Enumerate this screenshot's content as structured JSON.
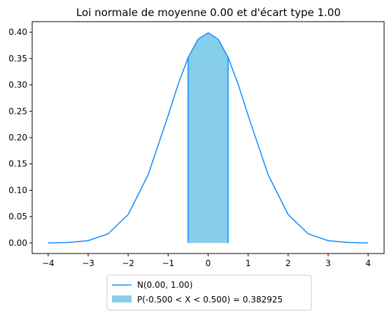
{
  "chart_data": {
    "type": "area",
    "title": "Loi normale de moyenne 0.00 et d'écart type 1.00",
    "xlabel": "",
    "ylabel": "",
    "xlim": [
      -4.4,
      4.4
    ],
    "ylim": [
      -0.02,
      0.42
    ],
    "x_ticks": [
      -4,
      -3,
      -2,
      -1,
      0,
      1,
      2,
      3,
      4
    ],
    "x_tick_labels": [
      "−4",
      "−3",
      "−2",
      "−1",
      "0",
      "1",
      "2",
      "3",
      "4"
    ],
    "y_ticks": [
      0.0,
      0.05,
      0.1,
      0.15,
      0.2,
      0.25,
      0.3,
      0.35,
      0.4
    ],
    "y_tick_labels": [
      "0.00",
      "0.05",
      "0.10",
      "0.15",
      "0.20",
      "0.25",
      "0.30",
      "0.35",
      "0.40"
    ],
    "grid": false,
    "legend_position": "bottom-center",
    "series": [
      {
        "name": "N(0.00, 1.00)",
        "kind": "line",
        "color": "#1e90ff",
        "x": [
          -4,
          -3.5,
          -3,
          -2.5,
          -2,
          -1.5,
          -1,
          -0.75,
          -0.5,
          -0.25,
          0,
          0.25,
          0.5,
          0.75,
          1,
          1.5,
          2,
          2.5,
          3,
          3.5,
          4
        ],
        "y": [
          0.0001,
          0.0009,
          0.0044,
          0.0175,
          0.054,
          0.1295,
          0.242,
          0.3011,
          0.3521,
          0.3867,
          0.3989,
          0.3867,
          0.3521,
          0.3011,
          0.242,
          0.1295,
          0.054,
          0.0175,
          0.0044,
          0.0009,
          0.0001
        ]
      },
      {
        "name": "P(-0.500 < X < 0.500) = 0.382925",
        "kind": "area",
        "color": "#87ceeb",
        "edge_color": "#1e90ff",
        "x": [
          -0.5,
          -0.25,
          0,
          0.25,
          0.5
        ],
        "y": [
          0.3521,
          0.3867,
          0.3989,
          0.3867,
          0.3521
        ]
      }
    ]
  }
}
